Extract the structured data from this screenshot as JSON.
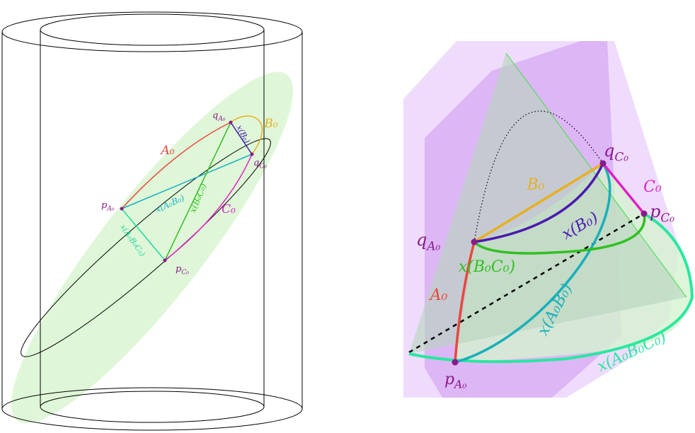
{
  "left": {
    "labels": [
      {
        "text": "q",
        "sub": "A₀"
      },
      {
        "text": "B₀"
      },
      {
        "text": "x(B₀)"
      },
      {
        "text": "q",
        "sub": "C₀"
      },
      {
        "text": "A₀"
      },
      {
        "text": "p",
        "sub": "A₀"
      },
      {
        "text": "x(A₀B₀)"
      },
      {
        "text": "x(B₀C₀)"
      },
      {
        "text": "C₀"
      },
      {
        "text": "x(A₀B₀C₀)"
      },
      {
        "text": "p",
        "sub": "C₀"
      }
    ]
  },
  "right": {
    "labels": [
      {
        "text": "q",
        "sub": "C₀"
      },
      {
        "text": "B₀"
      },
      {
        "text": "C₀"
      },
      {
        "text": "p",
        "sub": "C₀"
      },
      {
        "text": "q",
        "sub": "A₀"
      },
      {
        "text": "x(B₀)"
      },
      {
        "text": "x(B₀C₀)"
      },
      {
        "text": "A₀"
      },
      {
        "text": "x(A₀B₀)"
      },
      {
        "text": "x(A₀B₀C₀)"
      },
      {
        "text": "p",
        "sub": "A₀"
      }
    ]
  }
}
